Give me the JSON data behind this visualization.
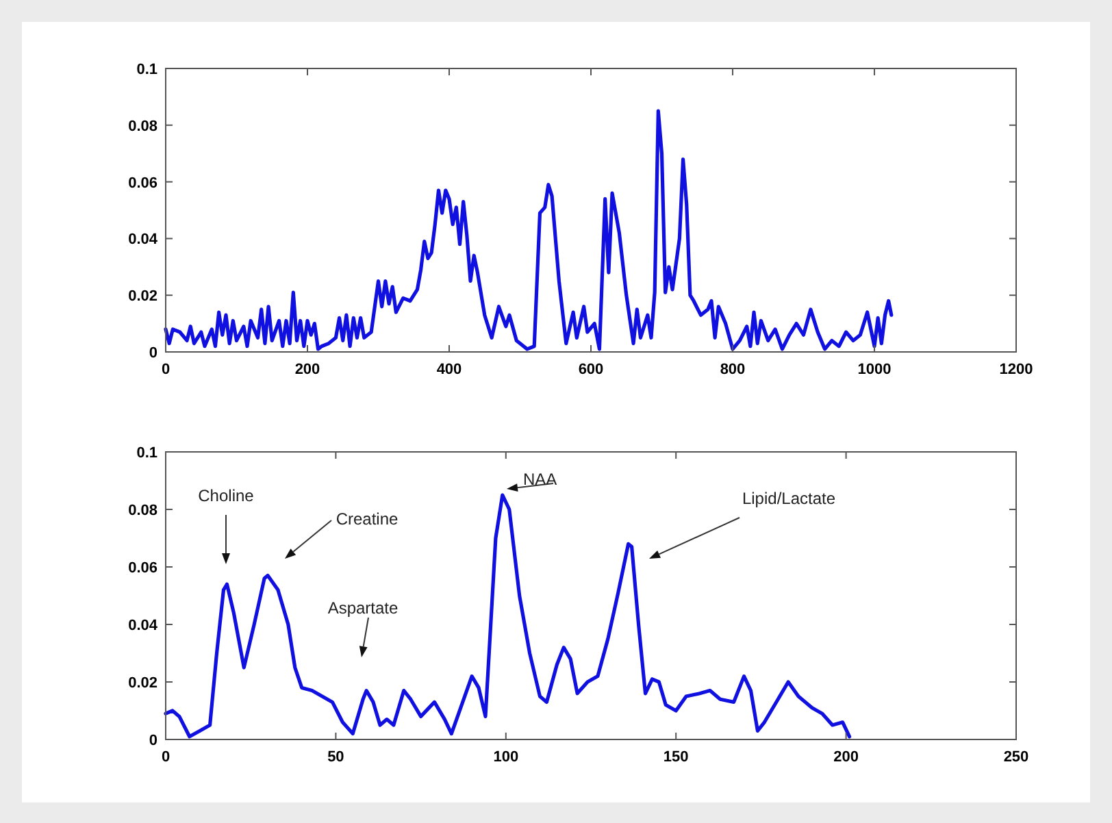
{
  "chart_data": [
    {
      "type": "line",
      "xlim": [
        0,
        1200
      ],
      "ylim": [
        0,
        0.1
      ],
      "xticks": [
        0,
        200,
        400,
        600,
        800,
        1000,
        1200
      ],
      "yticks": [
        0,
        0.02,
        0.04,
        0.06,
        0.08,
        0.1
      ],
      "grid": false,
      "series": [
        {
          "color": "#1010e0",
          "x": [
            0,
            5,
            10,
            20,
            30,
            35,
            40,
            50,
            55,
            65,
            70,
            75,
            80,
            85,
            90,
            95,
            100,
            110,
            115,
            120,
            130,
            135,
            140,
            145,
            150,
            160,
            165,
            170,
            175,
            180,
            185,
            190,
            195,
            200,
            205,
            210,
            215,
            220,
            230,
            240,
            245,
            250,
            255,
            260,
            265,
            270,
            275,
            280,
            290,
            300,
            305,
            310,
            315,
            320,
            325,
            335,
            345,
            355,
            360,
            365,
            370,
            375,
            380,
            385,
            390,
            395,
            400,
            405,
            410,
            415,
            420,
            425,
            430,
            435,
            440,
            450,
            460,
            470,
            480,
            485,
            495,
            510,
            520,
            528,
            535,
            540,
            545,
            555,
            565,
            575,
            580,
            590,
            595,
            605,
            612,
            620,
            625,
            630,
            640,
            650,
            660,
            665,
            670,
            680,
            685,
            690,
            695,
            700,
            705,
            710,
            715,
            725,
            730,
            735,
            740,
            745,
            755,
            765,
            770,
            775,
            780,
            790,
            800,
            810,
            820,
            825,
            830,
            835,
            840,
            850,
            860,
            870,
            880,
            890,
            900,
            910,
            920,
            930,
            940,
            950,
            960,
            970,
            980,
            990,
            1000,
            1005,
            1010,
            1015,
            1020,
            1024
          ],
          "values": [
            0.008,
            0.003,
            0.008,
            0.007,
            0.004,
            0.009,
            0.003,
            0.007,
            0.002,
            0.008,
            0.002,
            0.014,
            0.006,
            0.013,
            0.003,
            0.011,
            0.004,
            0.009,
            0.002,
            0.011,
            0.005,
            0.015,
            0.003,
            0.016,
            0.004,
            0.011,
            0.002,
            0.011,
            0.003,
            0.021,
            0.004,
            0.011,
            0.002,
            0.011,
            0.006,
            0.01,
            0.001,
            0.002,
            0.003,
            0.005,
            0.012,
            0.004,
            0.013,
            0.002,
            0.012,
            0.005,
            0.012,
            0.005,
            0.007,
            0.025,
            0.016,
            0.025,
            0.017,
            0.023,
            0.014,
            0.019,
            0.018,
            0.022,
            0.029,
            0.039,
            0.033,
            0.035,
            0.045,
            0.057,
            0.049,
            0.057,
            0.054,
            0.045,
            0.051,
            0.038,
            0.053,
            0.041,
            0.025,
            0.034,
            0.028,
            0.013,
            0.005,
            0.016,
            0.009,
            0.013,
            0.004,
            0.001,
            0.002,
            0.049,
            0.051,
            0.059,
            0.055,
            0.025,
            0.003,
            0.014,
            0.005,
            0.016,
            0.007,
            0.01,
            0.001,
            0.054,
            0.028,
            0.056,
            0.042,
            0.02,
            0.003,
            0.015,
            0.005,
            0.013,
            0.005,
            0.021,
            0.085,
            0.07,
            0.021,
            0.03,
            0.022,
            0.04,
            0.068,
            0.052,
            0.02,
            0.018,
            0.013,
            0.015,
            0.018,
            0.005,
            0.016,
            0.01,
            0.001,
            0.004,
            0.009,
            0.002,
            0.014,
            0.003,
            0.011,
            0.004,
            0.008,
            0.001,
            0.006,
            0.01,
            0.006,
            0.015,
            0.007,
            0.001,
            0.004,
            0.002,
            0.007,
            0.004,
            0.006,
            0.014,
            0.002,
            0.012,
            0.003,
            0.013,
            0.018,
            0.013
          ]
        }
      ]
    },
    {
      "type": "line",
      "xlim": [
        0,
        250
      ],
      "ylim": [
        0,
        0.1
      ],
      "xticks": [
        0,
        50,
        100,
        150,
        200,
        250
      ],
      "yticks": [
        0,
        0.02,
        0.04,
        0.06,
        0.08,
        0.1
      ],
      "grid": false,
      "annotations": [
        "Choline",
        "Creatine",
        "Aspartate",
        "NAA",
        "Lipid/Lactate"
      ],
      "series": [
        {
          "color": "#1010e0",
          "x": [
            0,
            2,
            4,
            7,
            10,
            13,
            15,
            17,
            18,
            20,
            23,
            26,
            29,
            30,
            33,
            36,
            38,
            40,
            43,
            46,
            49,
            52,
            55,
            58,
            59,
            61,
            63,
            65,
            67,
            70,
            72,
            75,
            79,
            82,
            84,
            87,
            90,
            92,
            94,
            97,
            99,
            101,
            104,
            107,
            110,
            112,
            115,
            117,
            119,
            121,
            124,
            127,
            130,
            133,
            136,
            137,
            139,
            141,
            143,
            145,
            147,
            150,
            153,
            157,
            160,
            163,
            167,
            170,
            172,
            174,
            176,
            180,
            183,
            186,
            190,
            193,
            196,
            199,
            201
          ],
          "values": [
            0.009,
            0.01,
            0.008,
            0.001,
            0.003,
            0.005,
            0.03,
            0.052,
            0.054,
            0.044,
            0.025,
            0.04,
            0.056,
            0.057,
            0.052,
            0.04,
            0.025,
            0.018,
            0.017,
            0.015,
            0.013,
            0.006,
            0.002,
            0.014,
            0.017,
            0.013,
            0.005,
            0.007,
            0.005,
            0.017,
            0.014,
            0.008,
            0.013,
            0.007,
            0.002,
            0.012,
            0.022,
            0.018,
            0.008,
            0.07,
            0.085,
            0.08,
            0.05,
            0.03,
            0.015,
            0.013,
            0.026,
            0.032,
            0.028,
            0.016,
            0.02,
            0.022,
            0.035,
            0.051,
            0.068,
            0.067,
            0.04,
            0.016,
            0.021,
            0.02,
            0.012,
            0.01,
            0.015,
            0.016,
            0.017,
            0.014,
            0.013,
            0.022,
            0.017,
            0.003,
            0.006,
            0.014,
            0.02,
            0.015,
            0.011,
            0.009,
            0.005,
            0.006,
            0.001
          ]
        }
      ]
    }
  ]
}
